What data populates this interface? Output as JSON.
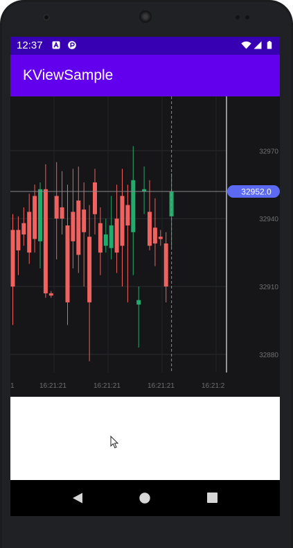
{
  "status_bar": {
    "time": "12:37",
    "left_icons": [
      "a-notification-icon",
      "app-notification-icon"
    ],
    "right_icons": [
      "wifi-icon",
      "signal-icon",
      "battery-icon"
    ],
    "background": "#3700b3"
  },
  "app_bar": {
    "title": "KViewSample",
    "background": "#6200ee"
  },
  "chart_data": {
    "type": "candlestick",
    "price_ticks": [
      "32970",
      "32940",
      "32910",
      "32880"
    ],
    "price_tick_values": [
      32970,
      32940,
      32910,
      32880
    ],
    "ylim": [
      32872,
      32994
    ],
    "time_ticks": [
      "1",
      "16:21:21",
      "16:21:21",
      "16:21:21",
      "16:21:2"
    ],
    "crosshair_price": "32952.0",
    "crosshair_value": 32952.0,
    "up_color": "#26a96c",
    "down_color": "#f0625f",
    "label_color": "#5b6af0",
    "grid": true,
    "candles": [
      {
        "open": 32935,
        "close": 32910,
        "high": 32942,
        "low": 32893
      },
      {
        "open": 32935,
        "close": 32926,
        "high": 32941,
        "low": 32915
      },
      {
        "open": 32938,
        "close": 32933,
        "high": 32945,
        "low": 32928
      },
      {
        "open": 32943,
        "close": 32925,
        "high": 32951,
        "low": 32920
      },
      {
        "open": 32950,
        "close": 32931,
        "high": 32955,
        "low": 32925
      },
      {
        "open": 32930,
        "close": 32953,
        "high": 32956,
        "low": 32918
      },
      {
        "open": 32953,
        "close": 32907,
        "high": 32964,
        "low": 32905
      },
      {
        "open": 32907,
        "close": 32906,
        "high": 32908,
        "low": 32905
      },
      {
        "open": 32950,
        "close": 32940,
        "high": 32965,
        "low": 32922
      },
      {
        "open": 32945,
        "close": 32940,
        "high": 32961,
        "low": 32933
      },
      {
        "open": 32937,
        "close": 32903,
        "high": 32955,
        "low": 32893
      },
      {
        "open": 32943,
        "close": 32930,
        "high": 32962,
        "low": 32918
      },
      {
        "open": 32948,
        "close": 32924,
        "high": 32963,
        "low": 32916
      },
      {
        "open": 32944,
        "close": 32934,
        "high": 32956,
        "low": 32910
      },
      {
        "open": 32932,
        "close": 32903,
        "high": 32946,
        "low": 32877
      },
      {
        "open": 32956,
        "close": 32942,
        "high": 32962,
        "low": 32933
      },
      {
        "open": 32938,
        "close": 32925,
        "high": 32945,
        "low": 32915
      },
      {
        "open": 32928,
        "close": 32933,
        "high": 32940,
        "low": 32925
      },
      {
        "open": 32927,
        "close": 32937,
        "high": 32950,
        "low": 32922
      },
      {
        "open": 32940,
        "close": 32925,
        "high": 32955,
        "low": 32916
      },
      {
        "open": 32950,
        "close": 32928,
        "high": 32962,
        "low": 32910
      },
      {
        "open": 32946,
        "close": 32937,
        "high": 32955,
        "low": 32903
      },
      {
        "open": 32934,
        "close": 32957,
        "high": 32972,
        "low": 32915
      },
      {
        "open": 32902,
        "close": 32904,
        "high": 32910,
        "low": 32883
      },
      {
        "open": 32952,
        "close": 32953,
        "high": 32963,
        "low": 32942
      },
      {
        "open": 32943,
        "close": 32928,
        "high": 32957,
        "low": 32926
      },
      {
        "open": 32936,
        "close": 32929,
        "high": 32949,
        "low": 32919
      },
      {
        "open": 32932,
        "close": 32931,
        "high": 32935,
        "low": 32928
      },
      {
        "open": 32929,
        "close": 32910,
        "high": 32934,
        "low": 32903
      },
      {
        "open": 32941,
        "close": 32952,
        "high": 32960,
        "low": 32927
      }
    ]
  },
  "nav_bar": {
    "buttons": [
      "back",
      "home",
      "recents"
    ]
  }
}
